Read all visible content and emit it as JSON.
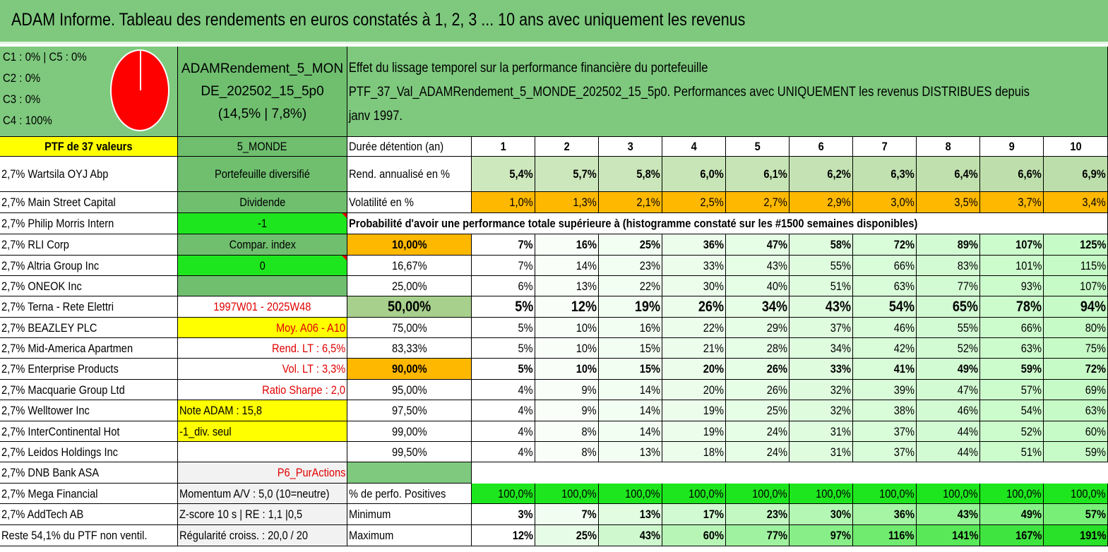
{
  "title": "ADAM Informe. Tableau des rendements en euros constatés à 1, 2, 3 ... 10 ans avec uniquement les revenus",
  "pie_legend": [
    "C1 : 0% | C5 : 0%",
    "C2 : 0%",
    "C3 : 0%",
    "C4 : 100%"
  ],
  "pie_colors": {
    "c4": "#ff0000"
  },
  "model": {
    "lines": [
      "ADAMRendement_5_MON",
      "DE_202502_15_5p0",
      "(14,5% | 7,8%)"
    ]
  },
  "effect_text": {
    "lines": [
      "Effet du lissage temporel sur la performance financière du portefeuille",
      "PTF_37_Val_ADAMRendement_5_MONDE_202502_15_5p0. Performances avec UNIQUEMENT les revenus DISTRIBUES depuis",
      "janv 1997."
    ]
  },
  "holdings": [
    "PTF de 37 valeurs",
    "2,7% Wartsila OYJ Abp",
    "2,7% Main Street Capital",
    "2,7% Philip Morris Intern",
    "2,7% RLI Corp",
    "2,7% Altria Group Inc",
    "2,7% ONEOK Inc",
    "2,7% Terna - Rete Elettri",
    "2,7% BEAZLEY PLC",
    "2,7% Mid-America Apartmen",
    "2,7% Enterprise Products",
    "2,7% Macquarie Group Ltd",
    "2,7% Welltower Inc",
    "2,7% InterContinental Hot",
    "2,7% Leidos Holdings Inc",
    "2,7% DNB Bank ASA",
    "2,7% Mega Financial",
    "2,7% AddTech AB",
    "Reste 54,1% du PTF non ventil."
  ],
  "info": {
    "universe": "5_MONDE",
    "type": "Portefeuille diversifié",
    "style": "Dividende",
    "flag1": "-1",
    "compar_label": "Compar. index",
    "flag2": "0",
    "blank": "",
    "period": "1997W01 - 2025W48",
    "moy": "Moy. A06 - A10",
    "rend_lt": "Rend. LT : 6,5%",
    "vol_lt": "Vol. LT : 3,3%",
    "sharpe": "Ratio Sharpe : 2,0",
    "note": "Note ADAM : 15,8",
    "div": "-1_div. seul",
    "blank2": "",
    "p6": "P6_PurActions",
    "momentum": "Momentum A/V : 5,0 (10=neutre)",
    "zscore": "Z-score 10 s | RE : 1,1 |0,5",
    "regularite": "Régularité croiss. : 20,0 / 20"
  },
  "duration_label": "Durée détention (an)",
  "years": [
    "1",
    "2",
    "3",
    "4",
    "5",
    "6",
    "7",
    "8",
    "9",
    "10"
  ],
  "rend_label": "Rend. annualisé en %",
  "rend_values": [
    "5,4%",
    "5,7%",
    "5,8%",
    "6,0%",
    "6,1%",
    "6,2%",
    "6,3%",
    "6,4%",
    "6,6%",
    "6,9%"
  ],
  "vol_label": "Volatilité en %",
  "vol_values": [
    "1,0%",
    "1,3%",
    "2,1%",
    "2,5%",
    "2,7%",
    "2,9%",
    "3,0%",
    "3,5%",
    "3,7%",
    "3,4%"
  ],
  "prob_title": "Probabilité d'avoir une performance totale supérieure à (histogramme constaté sur les #1500 semaines disponibles)",
  "prob_rows": [
    {
      "p": "10,00%",
      "v": [
        "7%",
        "16%",
        "25%",
        "36%",
        "47%",
        "58%",
        "72%",
        "89%",
        "107%",
        "125%"
      ]
    },
    {
      "p": "16,67%",
      "v": [
        "7%",
        "14%",
        "23%",
        "33%",
        "43%",
        "55%",
        "66%",
        "83%",
        "101%",
        "115%"
      ]
    },
    {
      "p": "25,00%",
      "v": [
        "6%",
        "13%",
        "22%",
        "30%",
        "40%",
        "51%",
        "63%",
        "77%",
        "93%",
        "107%"
      ]
    },
    {
      "p": "50,00%",
      "v": [
        "5%",
        "12%",
        "19%",
        "26%",
        "34%",
        "43%",
        "54%",
        "65%",
        "78%",
        "94%"
      ]
    },
    {
      "p": "75,00%",
      "v": [
        "5%",
        "10%",
        "16%",
        "22%",
        "29%",
        "37%",
        "46%",
        "55%",
        "66%",
        "80%"
      ]
    },
    {
      "p": "83,33%",
      "v": [
        "5%",
        "10%",
        "15%",
        "21%",
        "28%",
        "34%",
        "42%",
        "52%",
        "63%",
        "75%"
      ]
    },
    {
      "p": "90,00%",
      "v": [
        "5%",
        "10%",
        "15%",
        "20%",
        "26%",
        "33%",
        "41%",
        "49%",
        "59%",
        "72%"
      ]
    },
    {
      "p": "95,00%",
      "v": [
        "4%",
        "9%",
        "14%",
        "20%",
        "26%",
        "32%",
        "39%",
        "47%",
        "57%",
        "69%"
      ]
    },
    {
      "p": "97,50%",
      "v": [
        "4%",
        "9%",
        "14%",
        "19%",
        "25%",
        "32%",
        "38%",
        "46%",
        "54%",
        "63%"
      ]
    },
    {
      "p": "99,00%",
      "v": [
        "4%",
        "8%",
        "14%",
        "19%",
        "24%",
        "31%",
        "37%",
        "44%",
        "52%",
        "60%"
      ]
    },
    {
      "p": "99,50%",
      "v": [
        "4%",
        "8%",
        "13%",
        "18%",
        "24%",
        "31%",
        "37%",
        "44%",
        "51%",
        "59%"
      ]
    }
  ],
  "pos_label": "% de perfo. Positives",
  "pos_values": [
    "100,0%",
    "100,0%",
    "100,0%",
    "100,0%",
    "100,0%",
    "100,0%",
    "100,0%",
    "100,0%",
    "100,0%",
    "100,0%"
  ],
  "min_label": "Minimum",
  "min_values": [
    "3%",
    "7%",
    "13%",
    "17%",
    "23%",
    "30%",
    "36%",
    "43%",
    "49%",
    "57%"
  ],
  "max_label": "Maximum",
  "max_values": [
    "12%",
    "25%",
    "43%",
    "60%",
    "77%",
    "97%",
    "116%",
    "141%",
    "167%",
    "191%"
  ]
}
